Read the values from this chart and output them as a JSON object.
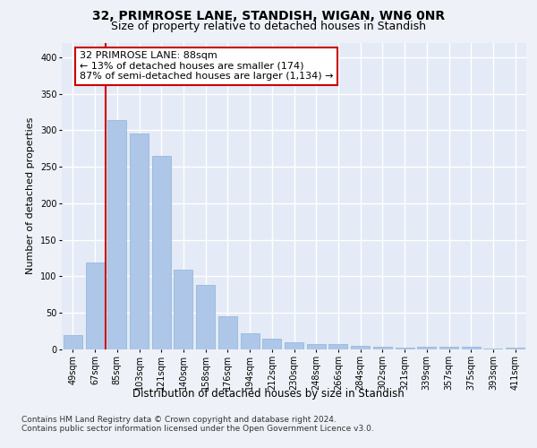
{
  "title": "32, PRIMROSE LANE, STANDISH, WIGAN, WN6 0NR",
  "subtitle": "Size of property relative to detached houses in Standish",
  "xlabel": "Distribution of detached houses by size in Standish",
  "ylabel": "Number of detached properties",
  "categories": [
    "49sqm",
    "67sqm",
    "85sqm",
    "103sqm",
    "121sqm",
    "140sqm",
    "158sqm",
    "176sqm",
    "194sqm",
    "212sqm",
    "230sqm",
    "248sqm",
    "266sqm",
    "284sqm",
    "302sqm",
    "321sqm",
    "339sqm",
    "357sqm",
    "375sqm",
    "393sqm",
    "411sqm"
  ],
  "values": [
    20,
    119,
    314,
    296,
    265,
    109,
    88,
    45,
    22,
    15,
    10,
    7,
    7,
    5,
    4,
    2,
    4,
    4,
    4,
    1,
    3
  ],
  "bar_color": "#aec6e8",
  "bar_edge_color": "#8ab4d8",
  "annotation_text": "32 PRIMROSE LANE: 88sqm\n← 13% of detached houses are smaller (174)\n87% of semi-detached houses are larger (1,134) →",
  "annotation_box_color": "#ffffff",
  "annotation_box_edge_color": "#cc0000",
  "vline_color": "#cc0000",
  "background_color": "#eef2f8",
  "plot_bg_color": "#e4eaf6",
  "grid_color": "#ffffff",
  "ylim": [
    0,
    420
  ],
  "yticks": [
    0,
    50,
    100,
    150,
    200,
    250,
    300,
    350,
    400
  ],
  "footer_text": "Contains HM Land Registry data © Crown copyright and database right 2024.\nContains public sector information licensed under the Open Government Licence v3.0.",
  "title_fontsize": 10,
  "subtitle_fontsize": 9,
  "xlabel_fontsize": 8.5,
  "ylabel_fontsize": 8,
  "tick_fontsize": 7,
  "annotation_fontsize": 8,
  "footer_fontsize": 6.5
}
